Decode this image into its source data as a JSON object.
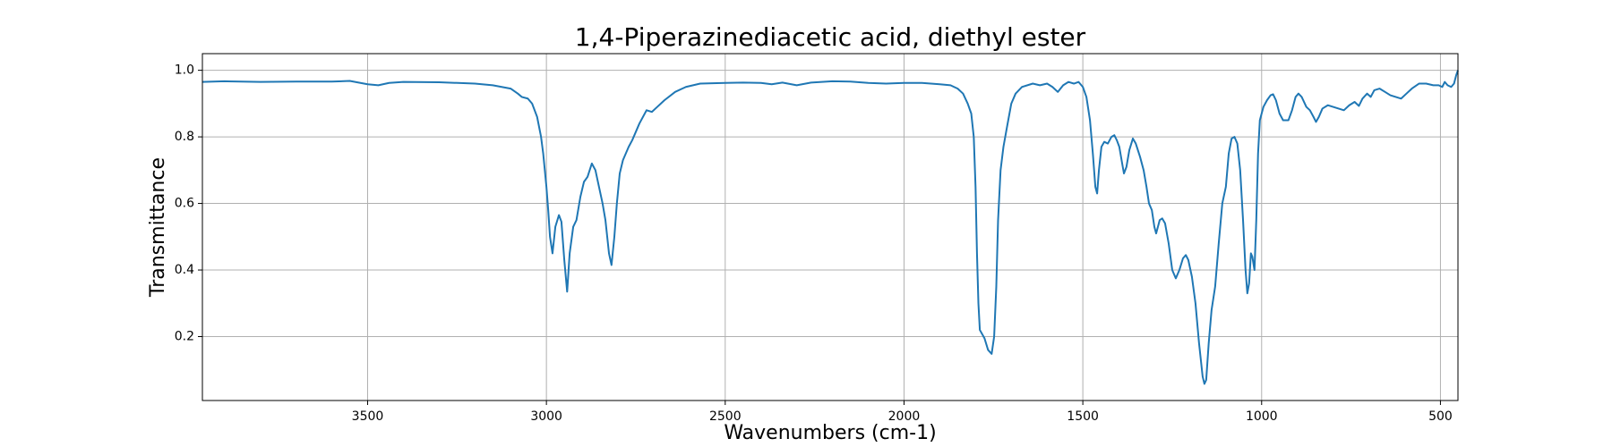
{
  "chart_data": {
    "type": "line",
    "title": "1,4-Piperazinediacetic acid, diethyl ester",
    "x_label": "Wavenumbers (cm-1)",
    "y_label": "Transmittance",
    "xlim": [
      3962,
      451
    ],
    "ylim": [
      0.008,
      1.05
    ],
    "xticks": [
      3500,
      3000,
      2500,
      2000,
      1500,
      1000,
      500
    ],
    "yticks": [
      0.2,
      0.4,
      0.6,
      0.8,
      {
        "value": 1,
        "label": "1.0"
      }
    ],
    "grid": true,
    "x": [
      3962,
      3900,
      3800,
      3700,
      3600,
      3550,
      3500,
      3470,
      3440,
      3400,
      3300,
      3200,
      3150,
      3100,
      3080,
      3069,
      3052,
      3040,
      3026,
      3015,
      3009,
      3000,
      2995,
      2990,
      2983,
      2975,
      2965,
      2958,
      2950,
      2942,
      2935,
      2925,
      2916,
      2905,
      2895,
      2885,
      2873,
      2863,
      2853,
      2843,
      2835,
      2825,
      2818,
      2810,
      2803,
      2795,
      2786,
      2770,
      2760,
      2740,
      2720,
      2705,
      2690,
      2670,
      2640,
      2610,
      2570,
      2500,
      2450,
      2400,
      2370,
      2340,
      2300,
      2260,
      2200,
      2150,
      2100,
      2050,
      2000,
      1950,
      1900,
      1870,
      1850,
      1835,
      1822,
      1812,
      1805,
      1800,
      1796,
      1792,
      1788,
      1775,
      1765,
      1755,
      1748,
      1742,
      1737,
      1730,
      1722,
      1712,
      1700,
      1688,
      1670,
      1640,
      1620,
      1600,
      1585,
      1570,
      1555,
      1540,
      1525,
      1512,
      1500,
      1490,
      1480,
      1472,
      1465,
      1460,
      1455,
      1448,
      1440,
      1430,
      1420,
      1412,
      1405,
      1398,
      1390,
      1385,
      1378,
      1370,
      1360,
      1352,
      1340,
      1330,
      1322,
      1315,
      1307,
      1300,
      1295,
      1285,
      1278,
      1270,
      1260,
      1250,
      1240,
      1230,
      1220,
      1212,
      1205,
      1195,
      1185,
      1175,
      1165,
      1160,
      1155,
      1148,
      1140,
      1130,
      1120,
      1110,
      1100,
      1092,
      1084,
      1076,
      1068,
      1060,
      1052,
      1045,
      1040,
      1035,
      1030,
      1026,
      1020,
      1015,
      1010,
      1005,
      995,
      985,
      975,
      968,
      960,
      950,
      940,
      925,
      915,
      905,
      897,
      888,
      875,
      865,
      855,
      848,
      840,
      830,
      815,
      800,
      785,
      770,
      755,
      740,
      728,
      718,
      705,
      695,
      685,
      670,
      655,
      640,
      625,
      610,
      595,
      580,
      560,
      540,
      520,
      505,
      495,
      488,
      480,
      470,
      462,
      456,
      451
    ],
    "series": [
      {
        "color": "#1f77b4",
        "values": [
          0.965,
          0.967,
          0.965,
          0.966,
          0.966,
          0.968,
          0.958,
          0.955,
          0.962,
          0.965,
          0.964,
          0.96,
          0.955,
          0.945,
          0.93,
          0.92,
          0.915,
          0.9,
          0.86,
          0.8,
          0.75,
          0.65,
          0.58,
          0.5,
          0.45,
          0.53,
          0.565,
          0.545,
          0.43,
          0.335,
          0.45,
          0.53,
          0.55,
          0.62,
          0.665,
          0.68,
          0.72,
          0.7,
          0.65,
          0.6,
          0.55,
          0.45,
          0.415,
          0.5,
          0.6,
          0.69,
          0.73,
          0.77,
          0.79,
          0.84,
          0.88,
          0.875,
          0.89,
          0.91,
          0.935,
          0.95,
          0.96,
          0.962,
          0.963,
          0.962,
          0.958,
          0.963,
          0.955,
          0.963,
          0.967,
          0.966,
          0.962,
          0.96,
          0.962,
          0.962,
          0.958,
          0.955,
          0.945,
          0.93,
          0.9,
          0.87,
          0.8,
          0.65,
          0.45,
          0.3,
          0.22,
          0.195,
          0.16,
          0.148,
          0.2,
          0.35,
          0.55,
          0.7,
          0.77,
          0.83,
          0.9,
          0.93,
          0.95,
          0.96,
          0.955,
          0.96,
          0.95,
          0.935,
          0.955,
          0.965,
          0.96,
          0.965,
          0.95,
          0.92,
          0.85,
          0.75,
          0.65,
          0.63,
          0.7,
          0.77,
          0.785,
          0.78,
          0.8,
          0.805,
          0.79,
          0.77,
          0.72,
          0.69,
          0.71,
          0.76,
          0.795,
          0.78,
          0.74,
          0.7,
          0.65,
          0.6,
          0.58,
          0.53,
          0.51,
          0.55,
          0.555,
          0.54,
          0.48,
          0.4,
          0.375,
          0.4,
          0.435,
          0.445,
          0.43,
          0.38,
          0.3,
          0.18,
          0.08,
          0.058,
          0.07,
          0.18,
          0.28,
          0.35,
          0.48,
          0.6,
          0.65,
          0.75,
          0.795,
          0.8,
          0.78,
          0.7,
          0.55,
          0.4,
          0.33,
          0.36,
          0.45,
          0.44,
          0.4,
          0.55,
          0.75,
          0.85,
          0.89,
          0.91,
          0.925,
          0.928,
          0.91,
          0.87,
          0.85,
          0.85,
          0.88,
          0.92,
          0.93,
          0.92,
          0.89,
          0.88,
          0.86,
          0.845,
          0.86,
          0.885,
          0.895,
          0.89,
          0.885,
          0.88,
          0.895,
          0.905,
          0.893,
          0.915,
          0.93,
          0.92,
          0.94,
          0.945,
          0.935,
          0.925,
          0.92,
          0.915,
          0.93,
          0.945,
          0.96,
          0.96,
          0.955,
          0.955,
          0.95,
          0.965,
          0.955,
          0.95,
          0.96,
          0.985,
          1.0
        ]
      }
    ]
  }
}
